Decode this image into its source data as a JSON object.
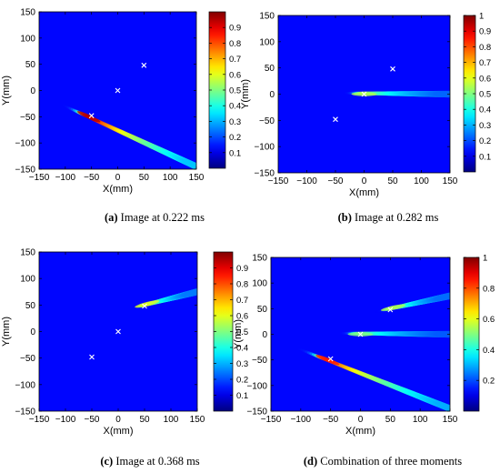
{
  "chart_data": [
    {
      "type": "heatmap",
      "panel_label": "(a)",
      "caption": "Image at 0.222 ms",
      "xlabel": "X(mm)",
      "ylabel": "Y(mm)",
      "xlim": [
        -150,
        150
      ],
      "ylim": [
        -150,
        150
      ],
      "xticks": [
        -150,
        -100,
        -50,
        0,
        50,
        100,
        150
      ],
      "yticks": [
        -150,
        -100,
        -50,
        0,
        50,
        100,
        150
      ],
      "colorbar": {
        "min": 0,
        "max": 1,
        "ticks": [
          0.1,
          0.2,
          0.3,
          0.4,
          0.5,
          0.6,
          0.7,
          0.8,
          0.9
        ]
      },
      "markers": [
        {
          "x": 50,
          "y": 48
        },
        {
          "x": 0,
          "y": 0
        },
        {
          "x": -50,
          "y": -48
        }
      ],
      "features": [
        {
          "start": [
            -100,
            -30
          ],
          "peak": [
            -55,
            -50
          ],
          "end": [
            150,
            -145
          ],
          "intensity": 0.95
        }
      ]
    },
    {
      "type": "heatmap",
      "panel_label": "(b)",
      "caption": "Image at 0.282 ms",
      "xlabel": "X(mm)",
      "ylabel": "Y(mm)",
      "xlim": [
        -150,
        150
      ],
      "ylim": [
        -150,
        150
      ],
      "xticks": [
        -150,
        -100,
        -50,
        0,
        50,
        100,
        150
      ],
      "yticks": [
        -150,
        -100,
        -50,
        0,
        50,
        100,
        150
      ],
      "colorbar": {
        "min": 0,
        "max": 1,
        "ticks": [
          0.1,
          0.2,
          0.3,
          0.4,
          0.5,
          0.6,
          0.7,
          0.8,
          0.9,
          1
        ]
      },
      "markers": [
        {
          "x": 50,
          "y": 48
        },
        {
          "x": 0,
          "y": 0
        },
        {
          "x": -50,
          "y": -48
        }
      ],
      "features": [
        {
          "start": [
            -30,
            2
          ],
          "peak": [
            0,
            0
          ],
          "end": [
            150,
            0
          ],
          "intensity": 0.55
        }
      ]
    },
    {
      "type": "heatmap",
      "panel_label": "(c)",
      "caption": "Image at 0.368 ms",
      "xlabel": "X(mm)",
      "ylabel": "Y(mm)",
      "xlim": [
        -150,
        150
      ],
      "ylim": [
        -150,
        150
      ],
      "xticks": [
        -150,
        -100,
        -50,
        0,
        50,
        100,
        150
      ],
      "yticks": [
        -150,
        -100,
        -50,
        0,
        50,
        100,
        150
      ],
      "colorbar": {
        "min": 0,
        "max": 1,
        "ticks": [
          0.1,
          0.2,
          0.3,
          0.4,
          0.5,
          0.6,
          0.7,
          0.8,
          0.9
        ]
      },
      "markers": [
        {
          "x": 50,
          "y": 48
        },
        {
          "x": 0,
          "y": 0
        },
        {
          "x": -50,
          "y": -48
        }
      ],
      "features": [
        {
          "start": [
            30,
            45
          ],
          "peak": [
            55,
            52
          ],
          "end": [
            150,
            75
          ],
          "intensity": 0.6
        }
      ]
    },
    {
      "type": "heatmap",
      "panel_label": "(d)",
      "caption": "Combination of three moments",
      "xlabel": "X(mm)",
      "ylabel": "Y(mm)",
      "xlim": [
        -150,
        150
      ],
      "ylim": [
        -150,
        150
      ],
      "xticks": [
        -150,
        -100,
        -50,
        0,
        50,
        100,
        150
      ],
      "yticks": [
        -150,
        -100,
        -50,
        0,
        50,
        100,
        150
      ],
      "colorbar": {
        "min": 0,
        "max": 1,
        "ticks": [
          0.2,
          0.4,
          0.6,
          0.8,
          1
        ]
      },
      "markers": [
        {
          "x": 50,
          "y": 48
        },
        {
          "x": 0,
          "y": 0
        },
        {
          "x": -50,
          "y": -48
        }
      ],
      "features": [
        {
          "start": [
            -100,
            -30
          ],
          "peak": [
            -55,
            -50
          ],
          "end": [
            150,
            -145
          ],
          "intensity": 0.85
        },
        {
          "start": [
            -30,
            2
          ],
          "peak": [
            0,
            0
          ],
          "end": [
            150,
            0
          ],
          "intensity": 0.5
        },
        {
          "start": [
            30,
            45
          ],
          "peak": [
            55,
            52
          ],
          "end": [
            150,
            75
          ],
          "intensity": 0.55
        }
      ]
    }
  ]
}
